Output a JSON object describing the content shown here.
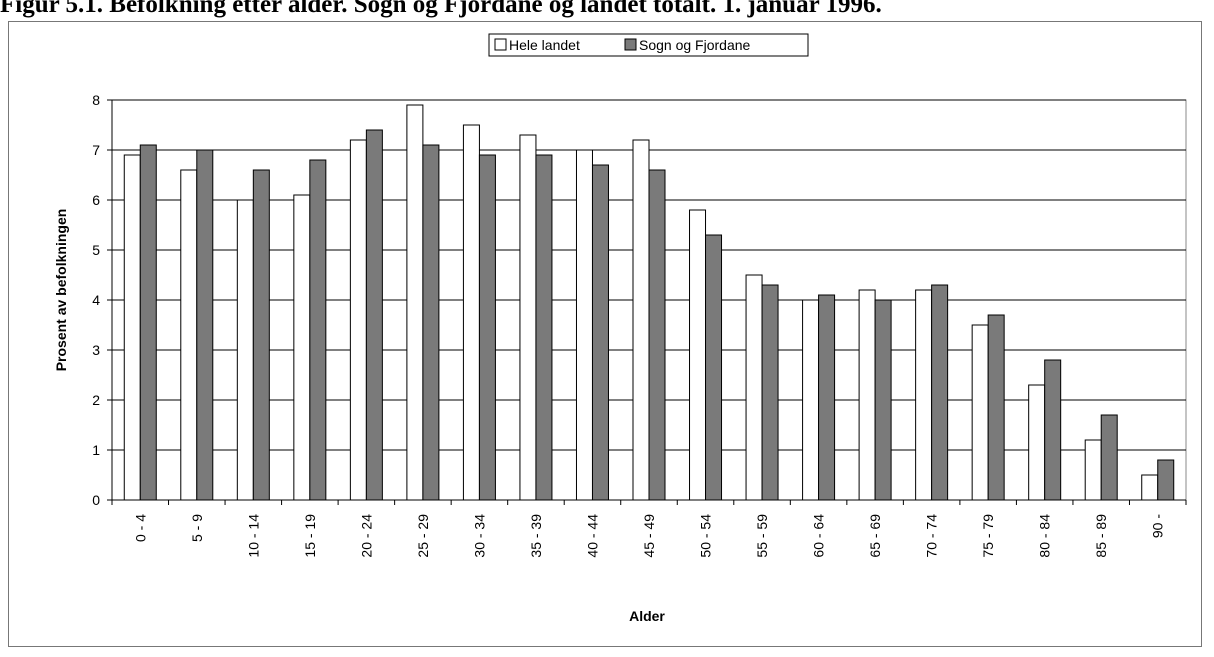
{
  "title": "Figur 5.1. Befolkning etter alder. Sogn og Fjordane og landet totalt. 1. januar 1996.",
  "colors": {
    "series_1": "#ffffff",
    "series_2": "#7a7a7a",
    "gridline": "#000000"
  },
  "chart_data": {
    "type": "bar",
    "title": "Figur 5.1. Befolkning etter alder. Sogn og Fjordane og landet totalt. 1. januar 1996.",
    "xlabel": "Alder",
    "ylabel": "Prosent av befolkningen",
    "ylim": [
      0,
      8
    ],
    "yticks": [
      "0",
      "1",
      "2",
      "3",
      "4",
      "5",
      "6",
      "7",
      "8"
    ],
    "grid": true,
    "legend_position": "top-center",
    "categories": [
      "0 - 4",
      "5 - 9",
      "10 - 14",
      "15 - 19",
      "20 - 24",
      "25 - 29",
      "30 - 34",
      "35 - 39",
      "40 - 44",
      "45 - 49",
      "50 - 54",
      "55 - 59",
      "60 - 64",
      "65 - 69",
      "70 - 74",
      "75 - 79",
      "80 - 84",
      "85 - 89",
      "90 -"
    ],
    "series": [
      {
        "name": "Hele landet",
        "values": [
          6.9,
          6.6,
          6.0,
          6.1,
          7.2,
          7.9,
          7.5,
          7.3,
          7.0,
          7.2,
          5.8,
          4.5,
          4.0,
          4.2,
          4.2,
          3.5,
          2.3,
          1.2,
          0.5
        ]
      },
      {
        "name": "Sogn og Fjordane",
        "values": [
          7.1,
          7.0,
          6.6,
          6.8,
          7.4,
          7.1,
          6.9,
          6.9,
          6.7,
          6.6,
          5.3,
          4.3,
          4.1,
          4.0,
          4.3,
          3.7,
          2.8,
          1.7,
          0.8
        ]
      }
    ]
  }
}
